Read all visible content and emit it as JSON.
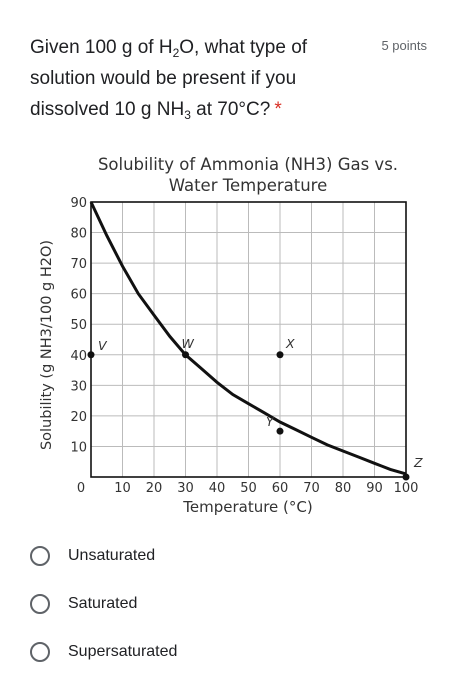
{
  "question": {
    "text_parts": [
      "Given 100 g of H",
      "2",
      "O, what type of solution would be present if you dissolved 10 g NH",
      "3",
      " at 70°C?"
    ],
    "required_mark": "*",
    "points": "5 points"
  },
  "chart_data": {
    "type": "line",
    "title_line1": "Solubility of Ammonia (NH3) Gas vs.",
    "title_line2": "Water Temperature",
    "xlabel": "Temperature (°C)",
    "ylabel": "Solubility (g NH3/100 g H2O)",
    "xlim": [
      0,
      100
    ],
    "ylim": [
      0,
      90
    ],
    "x_ticks": [
      "0",
      "10",
      "20",
      "30",
      "40",
      "50",
      "60",
      "70",
      "80",
      "90",
      "100"
    ],
    "y_ticks": [
      "10",
      "20",
      "30",
      "40",
      "50",
      "60",
      "70",
      "80",
      "90"
    ],
    "grid": true,
    "series": [
      {
        "x": [
          0,
          5,
          10,
          15,
          20,
          25,
          30,
          35,
          40,
          45,
          50,
          55,
          60,
          65,
          70,
          75,
          80,
          85,
          90,
          95,
          100
        ],
        "y": [
          90,
          79,
          69,
          60,
          53,
          46,
          40,
          35.5,
          31,
          27,
          24,
          21,
          18,
          15.5,
          13,
          10.5,
          8.5,
          6.5,
          4.5,
          2.5,
          1
        ]
      }
    ],
    "points": [
      {
        "label": "V",
        "x": 0,
        "y": 40
      },
      {
        "label": "W",
        "x": 30,
        "y": 40
      },
      {
        "label": "X",
        "x": 60,
        "y": 40
      },
      {
        "label": "Y",
        "x": 60,
        "y": 15
      },
      {
        "label": "Z",
        "x": 100,
        "y": 0
      }
    ]
  },
  "options": [
    {
      "label": "Unsaturated"
    },
    {
      "label": "Saturated"
    },
    {
      "label": "Supersaturated"
    }
  ]
}
